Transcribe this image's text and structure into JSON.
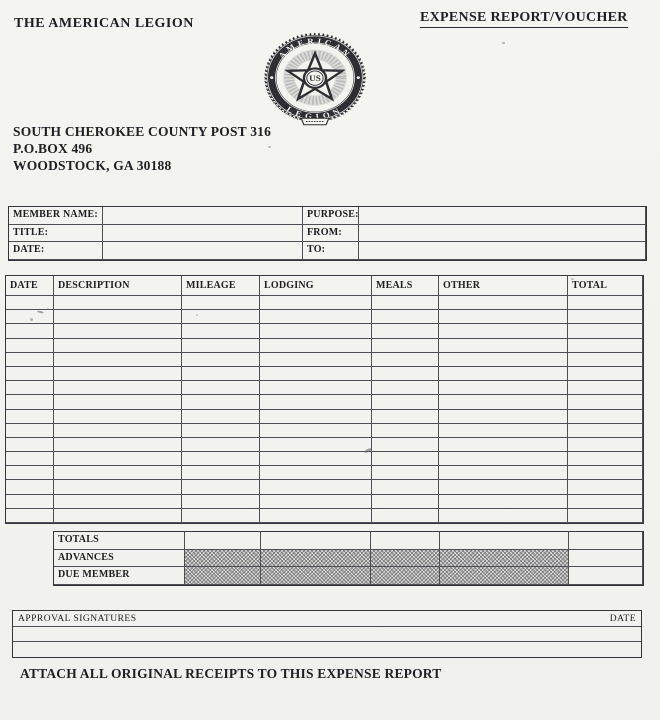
{
  "page": {
    "org_name": "THE AMERICAN LEGION",
    "doc_title": "EXPENSE REPORT/VOUCHER",
    "address": [
      "SOUTH CHEROKEE COUNTY POST 316",
      "P.O.BOX 496",
      "WOODSTOCK, GA 30188"
    ],
    "footer_note": "ATTACH ALL ORIGINAL RECEIPTS TO THIS EXPENSE REPORT"
  },
  "emblem": {
    "top_text": "AMERICAN",
    "bottom_text": "LEGION",
    "center_text": "US"
  },
  "member_info": {
    "rows": [
      {
        "left_label": "MEMBER NAME:",
        "left_value": "",
        "right_label": "PURPOSE:",
        "right_value": ""
      },
      {
        "left_label": "TITLE:",
        "left_value": "",
        "right_label": "FROM:",
        "right_value": ""
      },
      {
        "left_label": "DATE:",
        "left_value": "",
        "right_label": "TO:",
        "right_value": ""
      }
    ]
  },
  "expense_table": {
    "headers": [
      "DATE",
      "DESCRIPTION",
      "MILEAGE",
      "LODGING",
      "MEALS",
      "OTHER",
      "TOTAL"
    ],
    "blank_row_count": 16,
    "values": []
  },
  "summary": {
    "rows": [
      {
        "label": "TOTALS",
        "shaded": false,
        "values": [
          "",
          "",
          "",
          "",
          ""
        ]
      },
      {
        "label": "ADVANCES",
        "shaded": true,
        "values": [
          "",
          "",
          "",
          "",
          ""
        ]
      },
      {
        "label": "DUE MEMBER",
        "shaded": true,
        "values": [
          "",
          "",
          "",
          "",
          ""
        ]
      }
    ]
  },
  "approval": {
    "left_label": "APPROVAL SIGNATURES",
    "right_label": "DATE"
  },
  "colors": {
    "paper": "#f3f3ef",
    "ink": "#202024",
    "table_line": "#4e4e54",
    "shade_gray": "#b2b2b4"
  }
}
